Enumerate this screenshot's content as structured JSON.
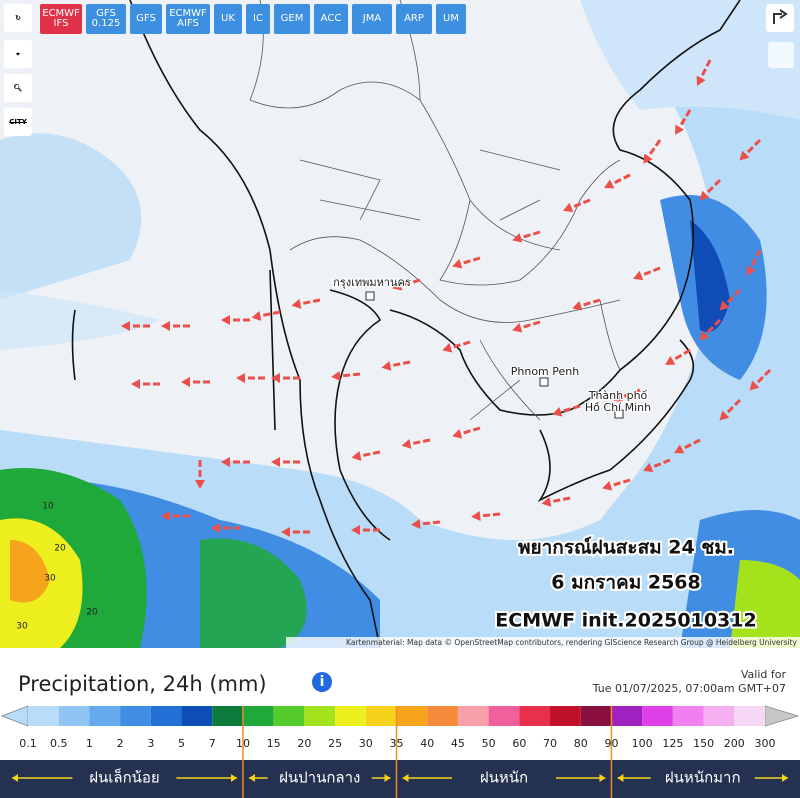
{
  "models": [
    "ECMWF\nIFS",
    "GFS\n0.125",
    "GFS",
    "ECMWF\nAIFS",
    "UK",
    "IC",
    "GEM",
    "ACC",
    "JMA",
    "ARP",
    "UM"
  ],
  "active_model": 0,
  "side_tools": {
    "city": "CITY"
  },
  "map": {
    "places": [
      "กรุงเทพมหานคร",
      "Phnom Penh",
      "Thành phố\nHồ Chí Minh"
    ],
    "precip_labels": [
      "10",
      "20",
      "30",
      "20",
      "30"
    ],
    "overlay": [
      "พยากรณ์ฝนสะสม 24 ชม.",
      "6 มกราคม 2568",
      "ECMWF init.2025010312"
    ],
    "attribution": "Kartenmaterial: Map data © OpenStreetMap contributors, rendering GIScience Research Group @ Heidelberg University"
  },
  "legend": {
    "title": "Precipitation, 24h (mm)",
    "valid_label": "Valid for",
    "valid_time": "Tue 01/07/2025, 07:00am GMT+07",
    "scale": [
      "0.1",
      "0.5",
      "1",
      "2",
      "3",
      "5",
      "7",
      "10",
      "15",
      "20",
      "25",
      "30",
      "35",
      "40",
      "45",
      "50",
      "60",
      "70",
      "80",
      "90",
      "100",
      "125",
      "150",
      "200",
      "300"
    ],
    "colors": [
      "#b9dcf8",
      "#90c4f3",
      "#66aaee",
      "#418de3",
      "#2270d6",
      "#0f4cb6",
      "#0b7a3b",
      "#1fa93a",
      "#55cc2a",
      "#a4e21c",
      "#ecee1e",
      "#f6d21a",
      "#f5a41c",
      "#f58a3a",
      "#f7a0a8",
      "#f0609a",
      "#e8304a",
      "#c0102a",
      "#8a1040",
      "#a020c0",
      "#e040e8",
      "#f080f0",
      "#f4b0f0",
      "#f4d8f4",
      "#c8c8c8"
    ],
    "categories": [
      "ฝนเล็กน้อย",
      "ฝนปานกลาง",
      "ฝนหนัก",
      "ฝนหนักมาก"
    ]
  }
}
